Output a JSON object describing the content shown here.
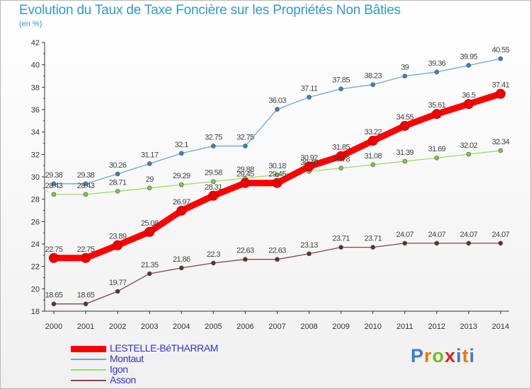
{
  "title": "Evolution du Taux de Taxe Foncière sur les Propriétés Non Bâties",
  "subtitle": "(en %)",
  "logo": {
    "text": "Proxiti"
  },
  "chart_data": {
    "type": "line",
    "x": [
      "2000",
      "2001",
      "2002",
      "2003",
      "2004",
      "2005",
      "2006",
      "2007",
      "2008",
      "2009",
      "2010",
      "2011",
      "2012",
      "2013",
      "2014"
    ],
    "ylim": [
      18,
      42
    ],
    "yticks": [
      18,
      20,
      22,
      24,
      26,
      28,
      30,
      32,
      34,
      36,
      38,
      40,
      42
    ],
    "grid": false,
    "legend_position": "bottom-left",
    "series": [
      {
        "name": "LESTELLE-BéTHARRAM",
        "color": "#ff0000",
        "marker": "#ee0000",
        "values": [
          22.75,
          22.75,
          23.89,
          25.08,
          26.97,
          28.31,
          29.45,
          29.45,
          30.92,
          31.85,
          33.22,
          34.55,
          35.61,
          36.5,
          37.41
        ],
        "labels": [
          "22.75",
          "22.75",
          "23.89",
          "25.08",
          "26.97",
          "28.31",
          "29.45",
          "29.45",
          "30.92",
          "31.85",
          "33.22",
          "34.55",
          "35.61",
          "36.5",
          "37.41"
        ]
      },
      {
        "name": "Montaut",
        "color": "#6aa6d8",
        "marker": "#3a7fc4",
        "values": [
          29.38,
          29.38,
          30.26,
          31.17,
          32.1,
          32.75,
          32.75,
          36.03,
          37.11,
          37.85,
          38.23,
          39.0,
          39.36,
          39.95,
          40.55
        ],
        "labels": [
          "29.38",
          "29.38",
          "30.26",
          "31.17",
          "32.1",
          "32.75",
          "32.75",
          "36.03",
          "37.11",
          "37.85",
          "38.23",
          "39",
          "39.36",
          "39.95",
          "40.55"
        ]
      },
      {
        "name": "Igon",
        "color": "#99dd66",
        "marker": "#77cc44",
        "values": [
          28.43,
          28.43,
          28.71,
          29.0,
          29.29,
          29.58,
          29.88,
          30.18,
          30.48,
          30.78,
          31.08,
          31.39,
          31.69,
          32.02,
          32.34
        ],
        "labels": [
          "28.43",
          "28.43",
          "28.71",
          "29",
          "29.29",
          "29.58",
          "29.88",
          "30.18",
          "30.48",
          "30.78",
          "31.08",
          "31.39",
          "31.69",
          "32.02",
          "32.34"
        ]
      },
      {
        "name": "Asson",
        "color": "#884444",
        "marker": "#6b2a2a",
        "values": [
          18.65,
          18.65,
          19.77,
          21.35,
          21.86,
          22.3,
          22.63,
          22.63,
          23.13,
          23.71,
          23.71,
          24.07,
          24.07,
          24.07,
          24.07
        ],
        "labels": [
          "18.65",
          "18.65",
          "19.77",
          "21.35",
          "21.86",
          "22.3",
          "22.63",
          "22.63",
          "23.13",
          "23.71",
          "23.71",
          "24.07",
          "24.07",
          "24.07",
          "24.07"
        ]
      }
    ]
  }
}
